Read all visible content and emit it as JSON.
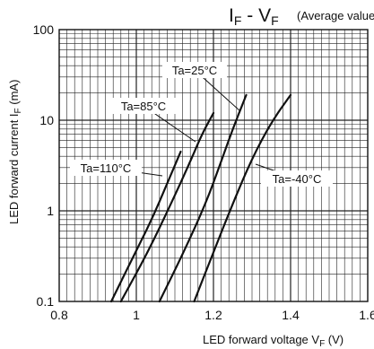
{
  "chart_data": {
    "type": "line",
    "title": "IF - VF",
    "title_parts": {
      "base": "I",
      "sub": "F",
      "mid": " - V",
      "sub2": "F"
    },
    "subtitle": "(Average value)",
    "xlabel": "LED forward voltage VF (V)",
    "xlabel_parts": {
      "pre": "LED forward voltage V",
      "sub": "F",
      "post": " (V)"
    },
    "ylabel": "LED forward current IF (mA)",
    "ylabel_parts": {
      "pre": "LED forward current I",
      "sub": "F",
      "post": " (mA)"
    },
    "x_scale": "linear",
    "y_scale": "log",
    "xlim": [
      0.8,
      1.6
    ],
    "ylim": [
      0.1,
      100
    ],
    "x_ticks": [
      0.8,
      1,
      1.2,
      1.4,
      1.6
    ],
    "x_tick_labels": [
      "0.8",
      "1",
      "1.2",
      "1.4",
      "1.6"
    ],
    "y_ticks": [
      0.1,
      1,
      10,
      100
    ],
    "y_tick_labels": [
      "0.1",
      "1",
      "10",
      "100"
    ],
    "grid": true,
    "series": [
      {
        "name": "Ta=110°C",
        "x": [
          0.935,
          0.99,
          1.04,
          1.08,
          1.115
        ],
        "y": [
          0.1,
          0.3,
          0.8,
          2.0,
          4.5
        ]
      },
      {
        "name": "Ta=85°C",
        "x": [
          0.96,
          1.03,
          1.09,
          1.14,
          1.17,
          1.2
        ],
        "y": [
          0.1,
          0.35,
          1.2,
          3.5,
          7.0,
          12.0
        ]
      },
      {
        "name": "Ta=25°C",
        "x": [
          1.06,
          1.12,
          1.18,
          1.22,
          1.25,
          1.285
        ],
        "y": [
          0.1,
          0.33,
          1.2,
          3.5,
          8.0,
          19.0
        ]
      },
      {
        "name": "Ta=-40°C",
        "x": [
          1.15,
          1.2,
          1.25,
          1.3,
          1.35,
          1.4
        ],
        "y": [
          0.1,
          0.35,
          1.2,
          3.8,
          9.5,
          19.0
        ]
      }
    ]
  }
}
